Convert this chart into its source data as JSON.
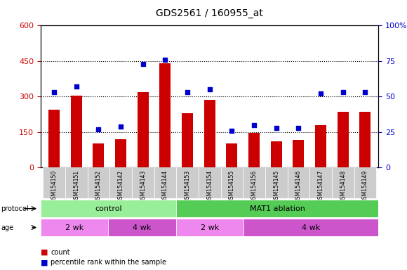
{
  "title": "GDS2561 / 160955_at",
  "samples": [
    "GSM154150",
    "GSM154151",
    "GSM154152",
    "GSM154142",
    "GSM154143",
    "GSM154144",
    "GSM154153",
    "GSM154154",
    "GSM154155",
    "GSM154156",
    "GSM154145",
    "GSM154146",
    "GSM154147",
    "GSM154148",
    "GSM154149"
  ],
  "counts": [
    245,
    305,
    100,
    120,
    320,
    440,
    230,
    285,
    100,
    145,
    110,
    115,
    180,
    235,
    235
  ],
  "percentiles": [
    53,
    57,
    27,
    29,
    73,
    76,
    53,
    55,
    26,
    30,
    28,
    28,
    52,
    53,
    53
  ],
  "bar_color": "#cc0000",
  "dot_color": "#0000cc",
  "left_yaxis_color": "#cc0000",
  "right_yaxis_color": "#0000cc",
  "left_ylim": [
    0,
    600
  ],
  "right_ylim": [
    0,
    100
  ],
  "left_yticks": [
    0,
    150,
    300,
    450,
    600
  ],
  "right_yticks": [
    0,
    25,
    50,
    75,
    100
  ],
  "right_yticklabels": [
    "0",
    "25",
    "50",
    "75",
    "100%"
  ],
  "hlines": [
    150,
    300,
    450
  ],
  "protocol_groups": [
    {
      "label": "control",
      "start": 0,
      "end": 6,
      "color": "#99ee99"
    },
    {
      "label": "MAT1 ablation",
      "start": 6,
      "end": 15,
      "color": "#55cc55"
    }
  ],
  "age_groups": [
    {
      "label": "2 wk",
      "start": 0,
      "end": 3,
      "color": "#ee88ee"
    },
    {
      "label": "4 wk",
      "start": 3,
      "end": 6,
      "color": "#cc55cc"
    },
    {
      "label": "2 wk",
      "start": 6,
      "end": 9,
      "color": "#ee88ee"
    },
    {
      "label": "4 wk",
      "start": 9,
      "end": 15,
      "color": "#cc55cc"
    }
  ],
  "legend_count_color": "#cc0000",
  "legend_dot_color": "#0000cc"
}
